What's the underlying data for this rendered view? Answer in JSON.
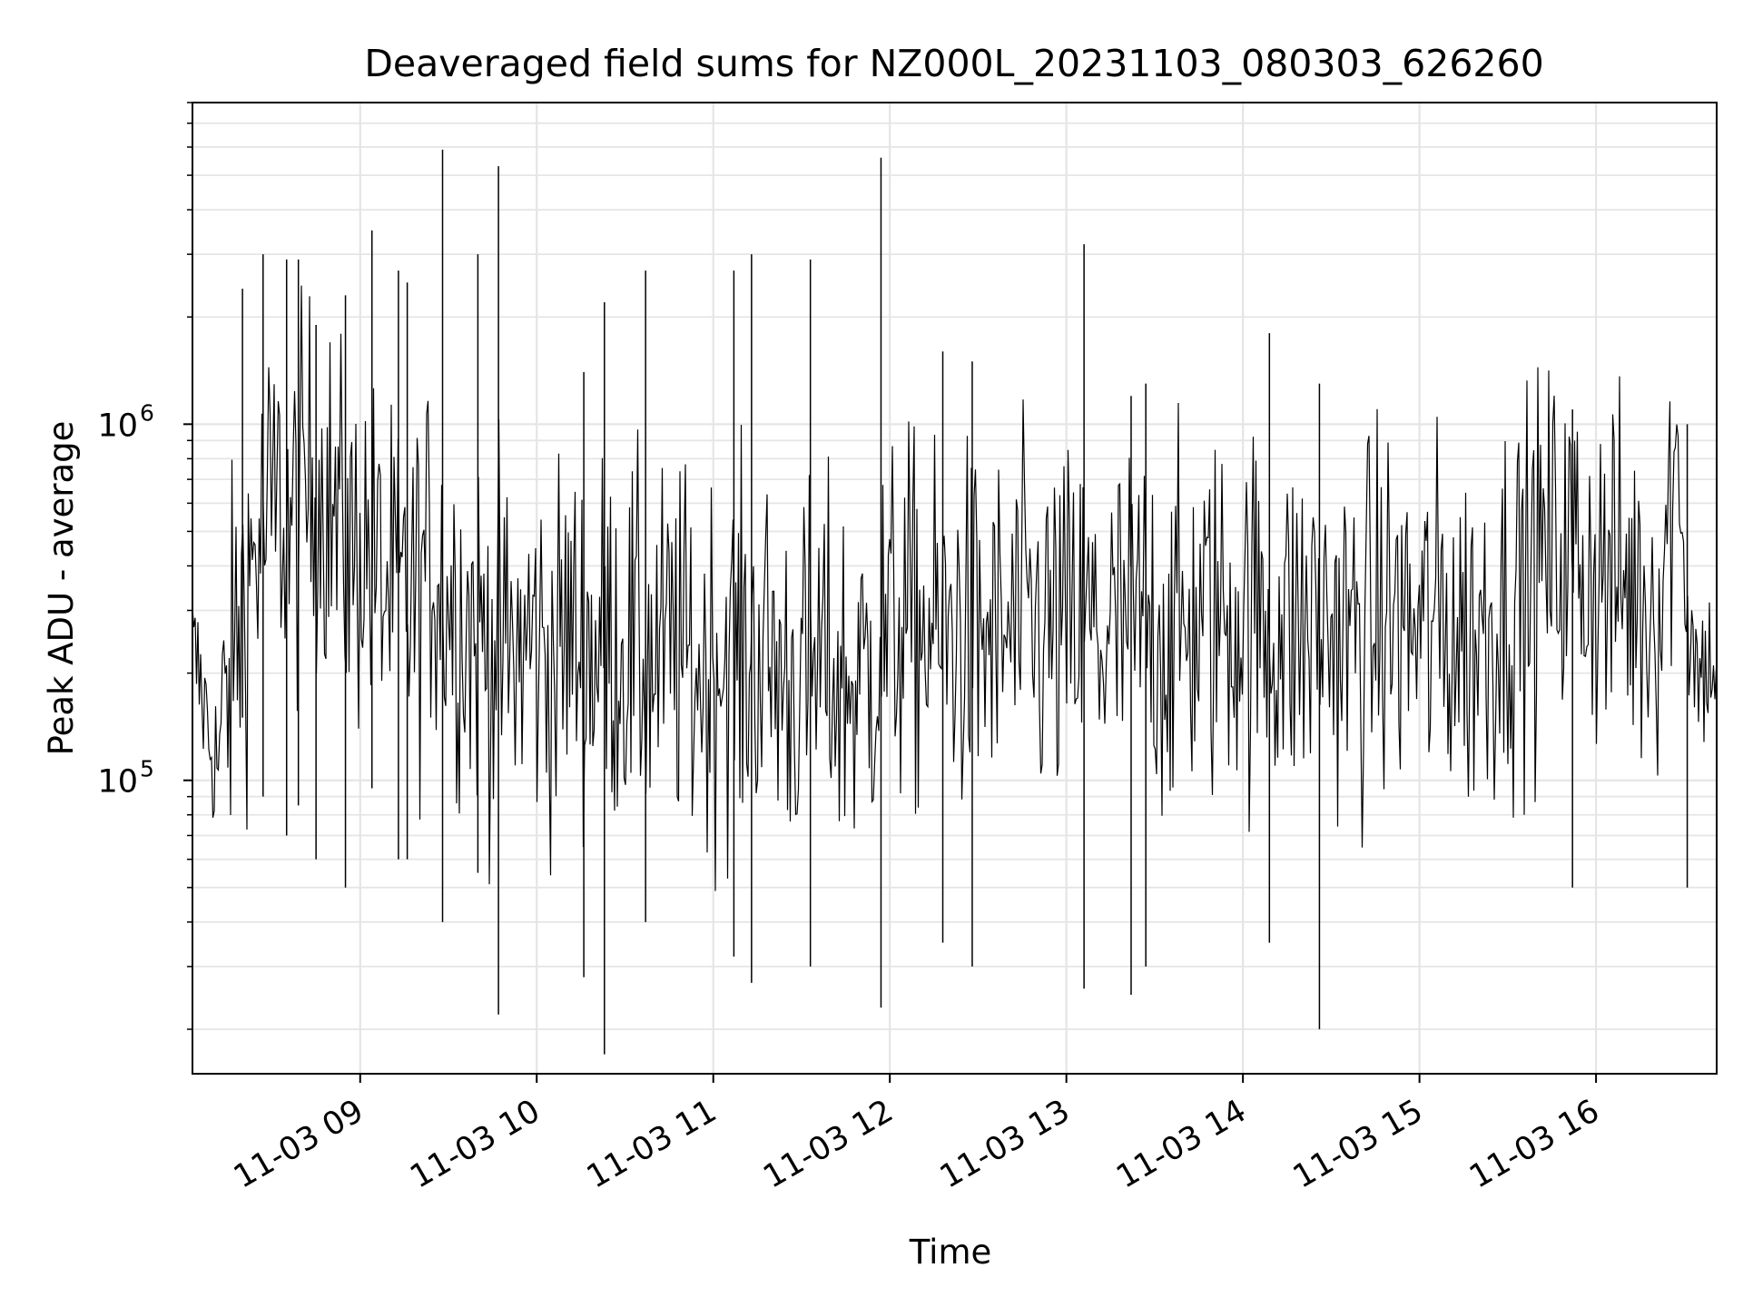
{
  "chart_data": {
    "type": "line",
    "title": "Deaveraged field sums for NZ000L_20231103_080303_626260",
    "xlabel": "Time",
    "ylabel": "Peak ADU - average",
    "yscale": "log",
    "ylim": [
      15000,
      8000000
    ],
    "xlim": [
      "2023-11-03 08:03",
      "2023-11-03 16:41"
    ],
    "grid": true,
    "line_color": "#000000",
    "x_ticks": [
      {
        "value": "2023-11-03 09:00",
        "label": "11-03 09"
      },
      {
        "value": "2023-11-03 10:00",
        "label": "11-03 10"
      },
      {
        "value": "2023-11-03 11:00",
        "label": "11-03 11"
      },
      {
        "value": "2023-11-03 12:00",
        "label": "11-03 12"
      },
      {
        "value": "2023-11-03 13:00",
        "label": "11-03 13"
      },
      {
        "value": "2023-11-03 14:00",
        "label": "11-03 14"
      },
      {
        "value": "2023-11-03 15:00",
        "label": "11-03 15"
      },
      {
        "value": "2023-11-03 16:00",
        "label": "11-03 16"
      }
    ],
    "y_ticks": [
      {
        "value": 100000,
        "base": "10",
        "exp": "5"
      },
      {
        "value": 1000000,
        "base": "10",
        "exp": "6"
      }
    ],
    "series": [
      {
        "x": [
          "2023-11-03 08:03",
          "2023-11-03 08:06",
          "2023-11-03 08:09",
          "2023-11-03 08:12",
          "2023-11-03 08:16",
          "2023-11-03 08:20",
          "2023-11-03 08:25",
          "2023-11-03 08:30",
          "2023-11-03 08:33",
          "2023-11-03 08:36",
          "2023-11-03 08:40",
          "2023-11-03 08:44",
          "2023-11-03 08:48",
          "2023-11-03 08:52",
          "2023-11-03 08:55",
          "2023-11-03 08:58",
          "2023-11-03 09:01",
          "2023-11-03 09:05",
          "2023-11-03 09:10",
          "2023-11-03 09:15",
          "2023-11-03 09:20",
          "2023-11-03 09:24",
          "2023-11-03 09:27",
          "2023-11-03 09:30",
          "2023-11-03 09:35",
          "2023-11-03 09:40",
          "2023-11-03 09:45",
          "2023-11-03 09:49",
          "2023-11-03 09:53",
          "2023-11-03 09:58",
          "2023-11-03 10:02",
          "2023-11-03 10:06",
          "2023-11-03 10:10",
          "2023-11-03 10:15",
          "2023-11-03 10:19",
          "2023-11-03 10:23",
          "2023-11-03 10:27",
          "2023-11-03 10:32",
          "2023-11-03 10:37",
          "2023-11-03 10:42",
          "2023-11-03 10:47",
          "2023-11-03 10:52",
          "2023-11-03 10:56",
          "2023-11-03 11:00",
          "2023-11-03 11:05",
          "2023-11-03 11:10",
          "2023-11-03 11:14",
          "2023-11-03 11:18",
          "2023-11-03 11:23",
          "2023-11-03 11:28",
          "2023-11-03 11:33",
          "2023-11-03 11:38",
          "2023-11-03 11:43",
          "2023-11-03 11:48",
          "2023-11-03 11:52",
          "2023-11-03 11:57",
          "2023-11-03 12:02",
          "2023-11-03 12:07",
          "2023-11-03 12:12",
          "2023-11-03 12:17",
          "2023-11-03 12:22",
          "2023-11-03 12:27",
          "2023-11-03 12:32",
          "2023-11-03 12:37",
          "2023-11-03 12:42",
          "2023-11-03 12:47",
          "2023-11-03 12:52",
          "2023-11-03 12:57",
          "2023-11-03 13:02",
          "2023-11-03 13:07",
          "2023-11-03 13:12",
          "2023-11-03 13:17",
          "2023-11-03 13:22",
          "2023-11-03 13:27",
          "2023-11-03 13:32",
          "2023-11-03 13:37",
          "2023-11-03 13:42",
          "2023-11-03 13:47",
          "2023-11-03 13:52",
          "2023-11-03 13:57",
          "2023-11-03 14:02",
          "2023-11-03 14:07",
          "2023-11-03 14:12",
          "2023-11-03 14:17",
          "2023-11-03 14:22",
          "2023-11-03 14:27",
          "2023-11-03 14:32",
          "2023-11-03 14:37",
          "2023-11-03 14:42",
          "2023-11-03 14:47",
          "2023-11-03 14:52",
          "2023-11-03 14:57",
          "2023-11-03 15:02",
          "2023-11-03 15:07",
          "2023-11-03 15:12",
          "2023-11-03 15:17",
          "2023-11-03 15:22",
          "2023-11-03 15:27",
          "2023-11-03 15:32",
          "2023-11-03 15:37",
          "2023-11-03 15:42",
          "2023-11-03 15:47",
          "2023-11-03 15:52",
          "2023-11-03 15:57",
          "2023-11-03 16:02",
          "2023-11-03 16:07",
          "2023-11-03 16:12",
          "2023-11-03 16:17",
          "2023-11-03 16:22",
          "2023-11-03 16:25",
          "2023-11-03 16:28",
          "2023-11-03 16:31",
          "2023-11-03 16:35",
          "2023-11-03 16:38",
          "2023-11-03 16:41"
        ],
        "y": [
          230000,
          180000,
          130000,
          110000,
          190000,
          320000,
          450000,
          560000,
          600000,
          480000,
          620000,
          700000,
          650000,
          520000,
          450000,
          420000,
          480000,
          390000,
          330000,
          300000,
          350000,
          420000,
          380000,
          330000,
          290000,
          260000,
          240000,
          230000,
          220000,
          250000,
          230000,
          210000,
          260000,
          240000,
          230000,
          250000,
          240000,
          230000,
          210000,
          220000,
          240000,
          210000,
          200000,
          220000,
          230000,
          210000,
          240000,
          220000,
          200000,
          190000,
          200000,
          210000,
          190000,
          180000,
          200000,
          250000,
          270000,
          280000,
          260000,
          250000,
          270000,
          260000,
          250000,
          240000,
          260000,
          270000,
          260000,
          250000,
          260000,
          270000,
          250000,
          260000,
          270000,
          280000,
          260000,
          250000,
          270000,
          280000,
          290000,
          300000,
          290000,
          280000,
          270000,
          260000,
          270000,
          280000,
          260000,
          250000,
          270000,
          280000,
          290000,
          270000,
          260000,
          280000,
          260000,
          250000,
          270000,
          300000,
          330000,
          370000,
          420000,
          450000,
          430000,
          400000,
          380000,
          360000,
          340000,
          320000,
          350000,
          600000,
          850000,
          280000,
          200000,
          210000,
          220000
        ]
      }
    ],
    "spikes": {
      "x": [
        "2023-11-03 08:20",
        "2023-11-03 08:27",
        "2023-11-03 08:35",
        "2023-11-03 08:39",
        "2023-11-03 08:45",
        "2023-11-03 08:55",
        "2023-11-03 09:04",
        "2023-11-03 09:13",
        "2023-11-03 09:16",
        "2023-11-03 09:28",
        "2023-11-03 09:40",
        "2023-11-03 09:47",
        "2023-11-03 10:16",
        "2023-11-03 10:23",
        "2023-11-03 10:37",
        "2023-11-03 11:07",
        "2023-11-03 11:13",
        "2023-11-03 11:33",
        "2023-11-03 11:57",
        "2023-11-03 12:18",
        "2023-11-03 12:28",
        "2023-11-03 13:06",
        "2023-11-03 13:22",
        "2023-11-03 13:27",
        "2023-11-03 14:09",
        "2023-11-03 14:26",
        "2023-11-03 15:52",
        "2023-11-03 16:31"
      ],
      "peak": [
        2400000,
        3000000,
        2900000,
        2900000,
        1900000,
        2300000,
        3500000,
        2700000,
        2500000,
        5900000,
        3000000,
        5300000,
        1400000,
        2200000,
        2700000,
        2700000,
        3000000,
        2900000,
        5600000,
        1600000,
        1500000,
        3200000,
        1200000,
        1300000,
        1800000,
        1300000,
        1100000,
        1000000
      ],
      "trough": [
        150000,
        90000,
        70000,
        85000,
        60000,
        50000,
        95000,
        60000,
        60000,
        40000,
        55000,
        22000,
        28000,
        17000,
        40000,
        32000,
        27000,
        30000,
        23000,
        35000,
        30000,
        26000,
        25000,
        30000,
        35000,
        20000,
        50000,
        50000
      ]
    }
  }
}
